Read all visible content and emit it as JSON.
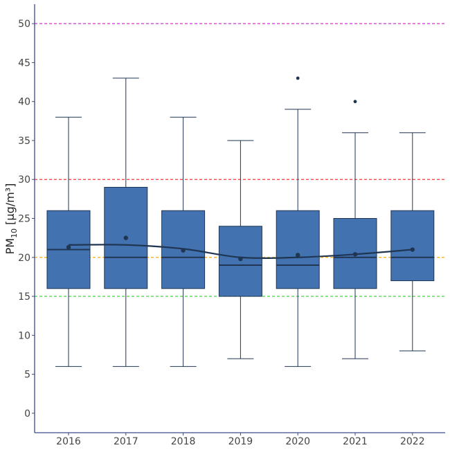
{
  "chart_data": {
    "type": "box",
    "ylabel": {
      "main": "PM",
      "sub": "10",
      "unit": " [µg/m³]"
    },
    "ylim": [
      -2.5,
      52.5
    ],
    "yticks": [
      0,
      5,
      10,
      15,
      20,
      25,
      30,
      35,
      40,
      45,
      50
    ],
    "categories": [
      "2016",
      "2017",
      "2018",
      "2019",
      "2020",
      "2021",
      "2022"
    ],
    "boxes": [
      {
        "year": "2016",
        "whisker_low": 6,
        "q1": 16,
        "median": 21,
        "q3": 26,
        "whisker_high": 38,
        "mean": 21.3,
        "outliers": []
      },
      {
        "year": "2017",
        "whisker_low": 6,
        "q1": 16,
        "median": 20,
        "q3": 29,
        "whisker_high": 43,
        "mean": 22.5,
        "outliers": []
      },
      {
        "year": "2018",
        "whisker_low": 6,
        "q1": 16,
        "median": 20,
        "q3": 26,
        "whisker_high": 38,
        "mean": 20.9,
        "outliers": []
      },
      {
        "year": "2019",
        "whisker_low": 7,
        "q1": 15,
        "median": 19,
        "q3": 24,
        "whisker_high": 35,
        "mean": 19.8,
        "outliers": []
      },
      {
        "year": "2020",
        "whisker_low": 6,
        "q1": 16,
        "median": 19,
        "q3": 26,
        "whisker_high": 39,
        "mean": 20.3,
        "outliers": [
          43
        ]
      },
      {
        "year": "2021",
        "whisker_low": 7,
        "q1": 16,
        "median": 20,
        "q3": 25,
        "whisker_high": 36,
        "mean": 20.4,
        "outliers": [
          40
        ]
      },
      {
        "year": "2022",
        "whisker_low": 8,
        "q1": 17,
        "median": 20,
        "q3": 26,
        "whisker_high": 36,
        "mean": 21.0,
        "outliers": []
      }
    ],
    "smooth_trend": [
      21.6,
      21.6,
      21.1,
      20.0,
      20.0,
      20.4,
      21.0
    ],
    "reference_lines": [
      {
        "value": 50,
        "color": "#cc33cc"
      },
      {
        "value": 30,
        "color": "#ff3333"
      },
      {
        "value": 20,
        "color": "#ffaa00"
      },
      {
        "value": 15,
        "color": "#33cc33"
      }
    ],
    "box_color": "#4272b0",
    "line_color": "#1f3552",
    "grid": false
  }
}
